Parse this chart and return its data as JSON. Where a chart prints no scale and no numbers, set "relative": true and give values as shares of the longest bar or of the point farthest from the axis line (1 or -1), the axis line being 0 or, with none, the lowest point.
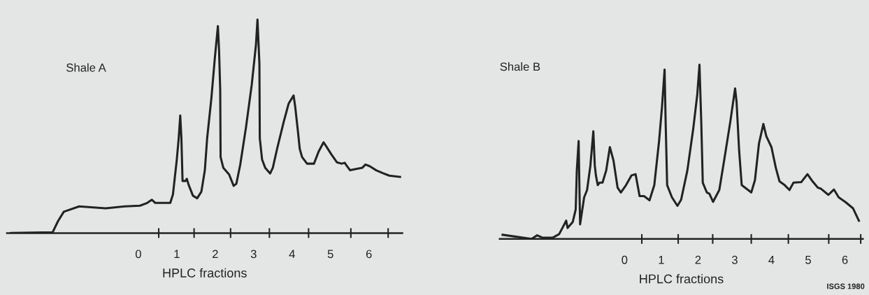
{
  "chart_data": [
    {
      "type": "line",
      "title": "Shale A",
      "xlabel": "HPLC fractions",
      "relative": true,
      "grid": false,
      "xlim": [
        -3.42,
        6.87
      ],
      "xticks": [
        0,
        {
          "value": 0.53,
          "label": null
        },
        1,
        {
          "value": 1.45,
          "label": null
        },
        2,
        {
          "value": 2.4,
          "label": null
        },
        3,
        {
          "value": 3.41,
          "label": null
        },
        4,
        {
          "value": 4.43,
          "label": null
        },
        5,
        {
          "value": 5.53,
          "label": null
        },
        6,
        {
          "value": 6.5,
          "label": null
        }
      ],
      "series": [
        {
          "color": "#222222",
          "x": [
            -3.32,
            -2.23,
            -2.09,
            -1.94,
            -1.54,
            -0.85,
            -0.36,
            0.04,
            0.23,
            0.35,
            0.44,
            0.83,
            0.9,
            1.0,
            1.05,
            1.09,
            1.12,
            1.15,
            1.23,
            1.26,
            1.31,
            1.42,
            1.53,
            1.64,
            1.73,
            1.79,
            1.9,
            1.99,
            2.07,
            2.1,
            2.13,
            2.14,
            2.21,
            2.36,
            2.48,
            2.55,
            2.65,
            2.8,
            2.95,
            3.06,
            3.1,
            3.15,
            3.16,
            3.22,
            3.3,
            3.43,
            3.5,
            3.61,
            3.78,
            3.91,
            4.04,
            4.08,
            4.15,
            4.2,
            4.26,
            4.39,
            4.57,
            4.69,
            4.82,
            4.89,
            5.02,
            5.17,
            5.29,
            5.37,
            5.42,
            5.51,
            5.66,
            5.83,
            5.91,
            6.02,
            6.19,
            6.36,
            6.53,
            6.81
          ],
          "values": [
            0.0,
            0.004,
            0.056,
            0.1,
            0.125,
            0.116,
            0.125,
            0.128,
            0.141,
            0.156,
            0.141,
            0.141,
            0.181,
            0.344,
            0.444,
            0.55,
            0.444,
            0.244,
            0.244,
            0.254,
            0.225,
            0.175,
            0.163,
            0.194,
            0.294,
            0.444,
            0.631,
            0.819,
            0.969,
            0.856,
            0.669,
            0.356,
            0.306,
            0.275,
            0.221,
            0.231,
            0.319,
            0.494,
            0.694,
            0.881,
            1.0,
            0.794,
            0.444,
            0.344,
            0.306,
            0.279,
            0.306,
            0.394,
            0.519,
            0.606,
            0.644,
            0.594,
            0.481,
            0.394,
            0.356,
            0.325,
            0.325,
            0.381,
            0.425,
            0.406,
            0.369,
            0.331,
            0.325,
            0.329,
            0.316,
            0.294,
            0.3,
            0.306,
            0.321,
            0.313,
            0.294,
            0.281,
            0.269,
            0.263
          ]
        }
      ]
    },
    {
      "type": "line",
      "title": "Shale B",
      "xlabel": "HPLC fractions",
      "relative": true,
      "grid": false,
      "xlim": [
        -3.4,
        6.49
      ],
      "xticks": [
        0,
        {
          "value": 0.47,
          "label": null
        },
        1,
        {
          "value": 1.46,
          "label": null
        },
        2,
        {
          "value": 2.4,
          "label": null
        },
        3,
        {
          "value": 3.45,
          "label": null
        },
        4,
        {
          "value": 4.46,
          "label": null
        },
        5,
        {
          "value": 5.56,
          "label": null
        },
        6,
        {
          "value": 6.43,
          "label": null
        }
      ],
      "annotations": [
        "ISGS 1980"
      ],
      "series": [
        {
          "color": "#222222",
          "x": [
            -3.32,
            -2.53,
            -2.38,
            -2.23,
            -1.96,
            -1.78,
            -1.64,
            -1.59,
            -1.55,
            -1.41,
            -1.33,
            -1.3,
            -1.25,
            -1.23,
            -1.21,
            -1.15,
            -1.1,
            -1.02,
            -0.93,
            -0.85,
            -0.81,
            -0.78,
            -0.73,
            -0.68,
            -0.6,
            -0.5,
            -0.4,
            -0.3,
            -0.19,
            -0.1,
            0.04,
            0.19,
            0.3,
            0.41,
            0.53,
            0.68,
            0.81,
            0.94,
            1.02,
            1.09,
            1.12,
            1.16,
            1.29,
            1.44,
            1.54,
            1.71,
            1.87,
            1.98,
            2.04,
            2.09,
            2.13,
            2.24,
            2.31,
            2.41,
            2.58,
            2.71,
            2.88,
            3.01,
            3.05,
            3.12,
            3.19,
            3.32,
            3.45,
            3.55,
            3.66,
            3.78,
            3.86,
            4.0,
            4.12,
            4.22,
            4.36,
            4.49,
            4.6,
            4.81,
            4.98,
            5.12,
            5.26,
            5.35,
            5.55,
            5.7,
            5.83,
            6.02,
            6.22,
            6.38
          ],
          "values": [
            0.024,
            0.0,
            0.021,
            0.007,
            0.007,
            0.028,
            0.084,
            0.105,
            0.063,
            0.098,
            0.169,
            0.393,
            0.562,
            0.309,
            0.084,
            0.169,
            0.239,
            0.281,
            0.421,
            0.618,
            0.421,
            0.365,
            0.309,
            0.323,
            0.323,
            0.393,
            0.527,
            0.449,
            0.295,
            0.267,
            0.309,
            0.365,
            0.372,
            0.246,
            0.246,
            0.222,
            0.309,
            0.562,
            0.758,
            0.972,
            0.66,
            0.309,
            0.239,
            0.19,
            0.225,
            0.393,
            0.632,
            0.829,
            1.0,
            0.66,
            0.323,
            0.267,
            0.26,
            0.213,
            0.281,
            0.449,
            0.674,
            0.864,
            0.787,
            0.506,
            0.309,
            0.288,
            0.267,
            0.337,
            0.548,
            0.66,
            0.59,
            0.527,
            0.407,
            0.33,
            0.309,
            0.281,
            0.323,
            0.326,
            0.372,
            0.33,
            0.295,
            0.288,
            0.253,
            0.284,
            0.239,
            0.211,
            0.176,
            0.105
          ]
        }
      ]
    }
  ]
}
